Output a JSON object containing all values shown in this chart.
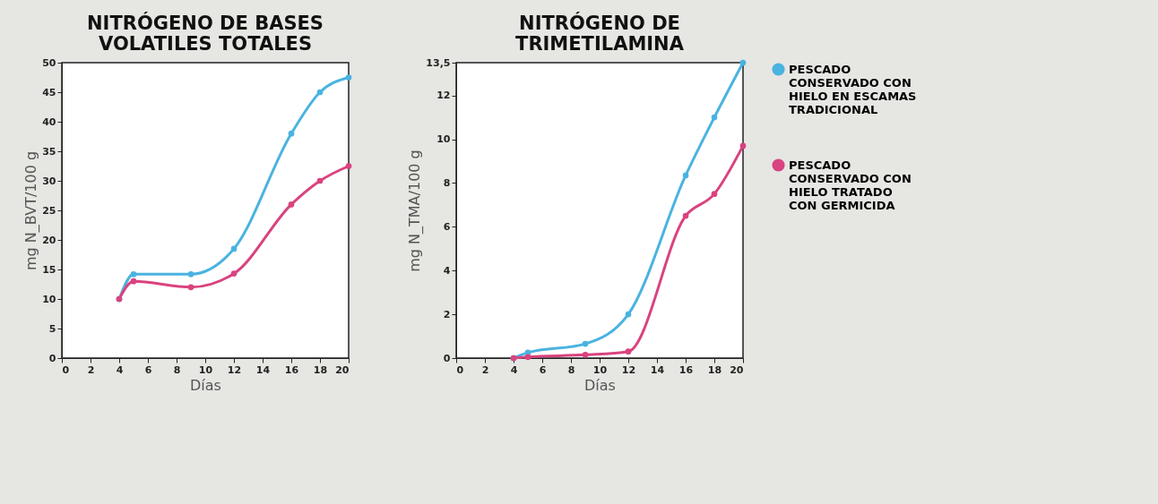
{
  "chart_data": [
    {
      "type": "line",
      "title": "NITRÓGENO DE BASES VOLATILES TOTALES",
      "xlabel": "Días",
      "ylabel": "mg N_BVT/100 g",
      "x": [
        4,
        5,
        9,
        12,
        16,
        18,
        20
      ],
      "series": [
        {
          "color": "#4ab3e0",
          "values": [
            10,
            14.2,
            14.2,
            18.5,
            38,
            45,
            47.5
          ]
        },
        {
          "color": "#d9437f",
          "values": [
            10,
            13,
            12,
            14.3,
            26,
            30,
            32.5
          ]
        }
      ],
      "xlim": [
        0,
        20
      ],
      "xticks": [
        0,
        2,
        4,
        6,
        8,
        10,
        12,
        14,
        16,
        18,
        20
      ],
      "ylim": [
        0,
        50
      ],
      "yticks": [
        0,
        5,
        10,
        15,
        20,
        25,
        30,
        35,
        40,
        45,
        50
      ],
      "marker": "circle",
      "line_style": "solid"
    },
    {
      "type": "line",
      "title": "NITRÓGENO DE TRIMETILAMINA",
      "xlabel": "Días",
      "ylabel": "mg N_TMA/100 g",
      "x": [
        4,
        5,
        9,
        12,
        16,
        18,
        20
      ],
      "series": [
        {
          "name": "PESCADO CONSERVADO CON HIELO EN ESCAMAS TRADICIONAL",
          "color": "#4ab3e0",
          "values": [
            0,
            0.25,
            0.65,
            2,
            8.35,
            11,
            13.5
          ]
        },
        {
          "name": "PESCADO CONSERVADO CON HIELO TRATADO CON GERMICIDA",
          "color": "#d9437f",
          "values": [
            0,
            0.05,
            0.15,
            0.3,
            6.5,
            7.5,
            9.7
          ]
        }
      ],
      "xlim": [
        0,
        20
      ],
      "xticks": [
        0,
        2,
        4,
        6,
        8,
        10,
        12,
        14,
        16,
        18,
        20
      ],
      "ylim": [
        0,
        13.5
      ],
      "yticks": [
        0,
        2,
        4,
        6,
        8,
        10,
        12,
        {
          "value": 13.5,
          "label": "13,5"
        }
      ],
      "marker": "circle",
      "line_style": "solid",
      "legend": "right"
    }
  ]
}
